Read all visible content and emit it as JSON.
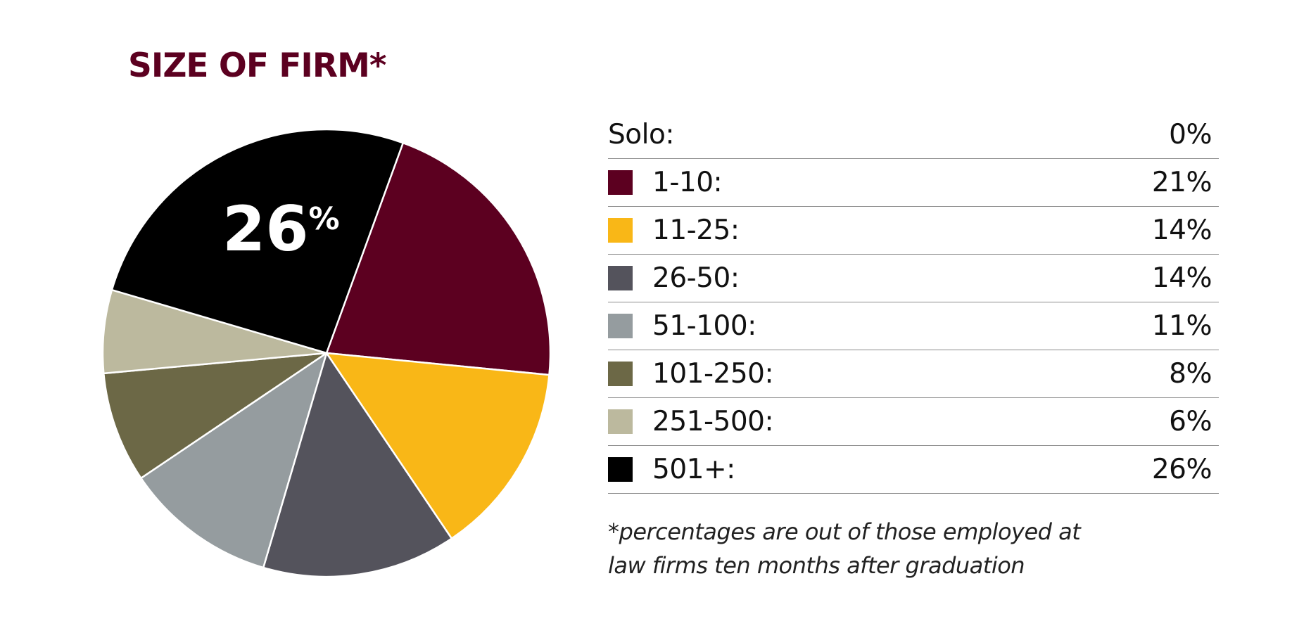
{
  "chart_data": {
    "type": "pie",
    "title": "SIZE OF FIRM*",
    "categories": [
      "Solo:",
      "1-10:",
      "11-25:",
      "26-50:",
      "51-100:",
      "101-250:",
      "251-500:",
      "501+:"
    ],
    "values": [
      0,
      21,
      14,
      14,
      11,
      8,
      6,
      26
    ],
    "value_labels": [
      "0%",
      "21%",
      "14%",
      "14%",
      "11%",
      "8%",
      "6%",
      "26%"
    ],
    "colors": [
      "",
      "#5c0020",
      "#f9b717",
      "#54535c",
      "#959c9f",
      "#6c6846",
      "#bcb99e",
      "#000000"
    ],
    "highlight": {
      "category": "501+:",
      "number": "26",
      "unit": "%"
    },
    "footnote": [
      "*percentages are out of those employed at",
      "law firms ten months after graduation"
    ]
  }
}
